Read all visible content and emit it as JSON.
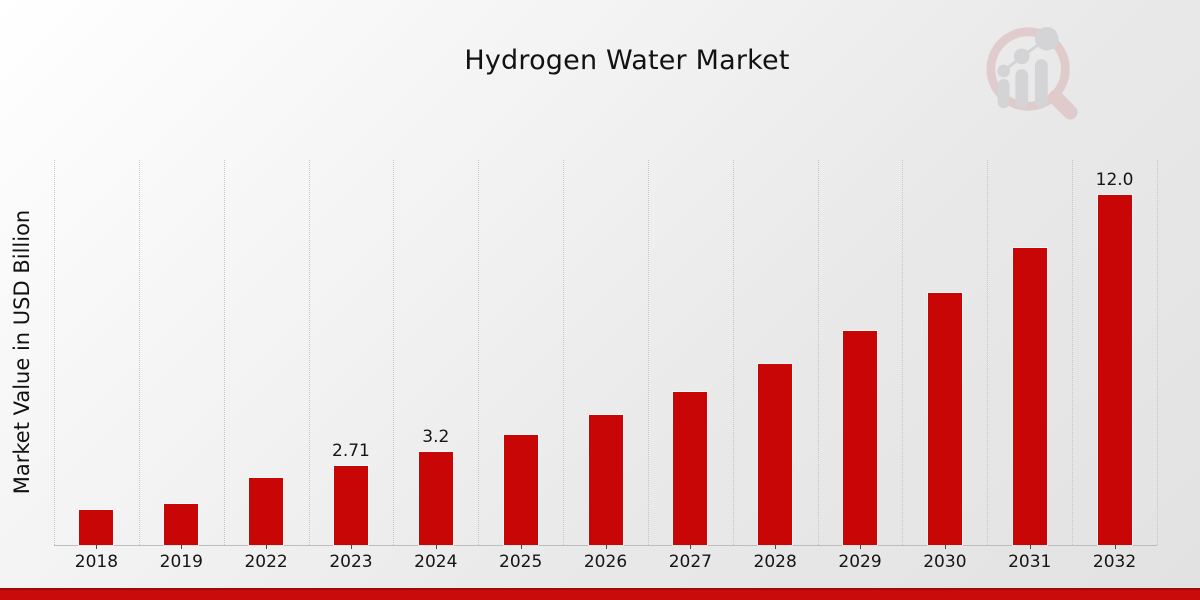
{
  "page": {
    "title": "Hydrogen Water Market",
    "background_from": "#ffffff",
    "background_to": "#e2e2e2",
    "footer_bar_color": "#c90b0b",
    "footer_bar_edge_color": "#9c0a0a"
  },
  "logo": {
    "name": "magnifier-bar-chart-watermark-logo",
    "ring_color": "#d9b4b4",
    "figure_color": "#c3c3c7"
  },
  "chart_data": {
    "type": "bar",
    "title": "Hydrogen Water Market",
    "xlabel": "",
    "ylabel": "Market Value in USD Billion",
    "categories": [
      "2018",
      "2019",
      "2022",
      "2023",
      "2024",
      "2025",
      "2026",
      "2027",
      "2028",
      "2029",
      "2030",
      "2031",
      "2032"
    ],
    "values": [
      1.2,
      1.4,
      2.3,
      2.71,
      3.2,
      3.78,
      4.46,
      5.26,
      6.21,
      7.33,
      8.65,
      10.17,
      12.0
    ],
    "bar_labels": [
      "",
      "",
      "",
      "2.71",
      "3.2",
      "",
      "",
      "",
      "",
      "",
      "",
      "",
      "12.0"
    ],
    "ylim": [
      0,
      13.2
    ],
    "bar_color": "#c90606",
    "grid": "vertical-dotted",
    "gridline_color": "#c6c6c6",
    "axis_line_color": "#bdbdbd",
    "legend": "none"
  }
}
